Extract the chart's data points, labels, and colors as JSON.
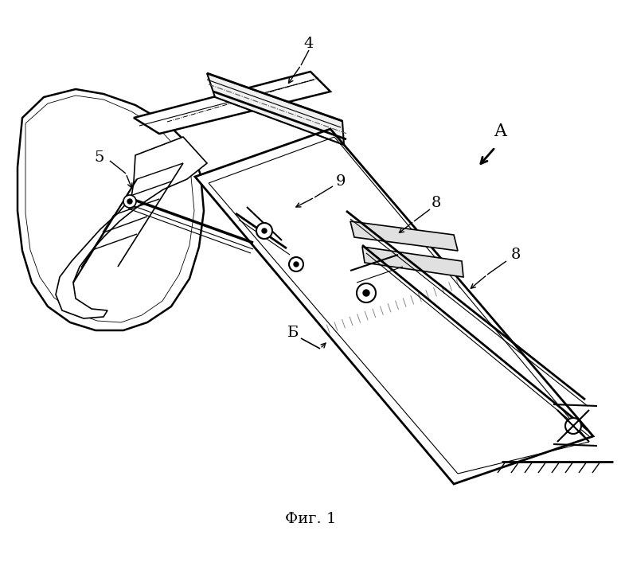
{
  "title": "Фиг. 1",
  "bg": "#ffffff",
  "lc": "#000000",
  "label_4": "4",
  "label_5": "5",
  "label_8a": "8",
  "label_8b": "8",
  "label_9": "9",
  "label_A": "A",
  "label_B": "Б",
  "fig_width": 7.8,
  "fig_height": 7.06,
  "dpi": 100
}
